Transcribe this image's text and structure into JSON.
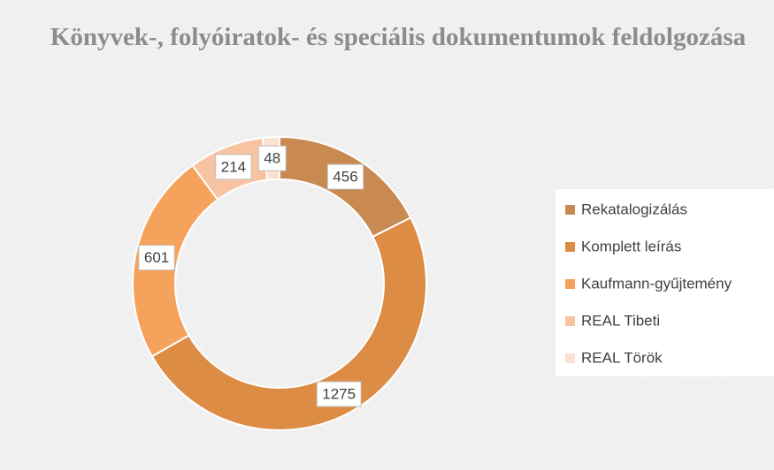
{
  "chart_data": {
    "type": "donut",
    "title": "Könyvek-, folyóiratok- és speciális dokumentumok feldolgozása",
    "categories": [
      "Rekatalogizálás",
      "Komplett leírás",
      "Kaufmann-gyűjtemény",
      "REAL Tibeti",
      "REAL Török"
    ],
    "values": [
      456,
      1275,
      601,
      214,
      48
    ],
    "colors": [
      "#c98a52",
      "#dc8c45",
      "#f5a35c",
      "#f8c3a0",
      "#fbe1d0"
    ],
    "legend": "right"
  }
}
